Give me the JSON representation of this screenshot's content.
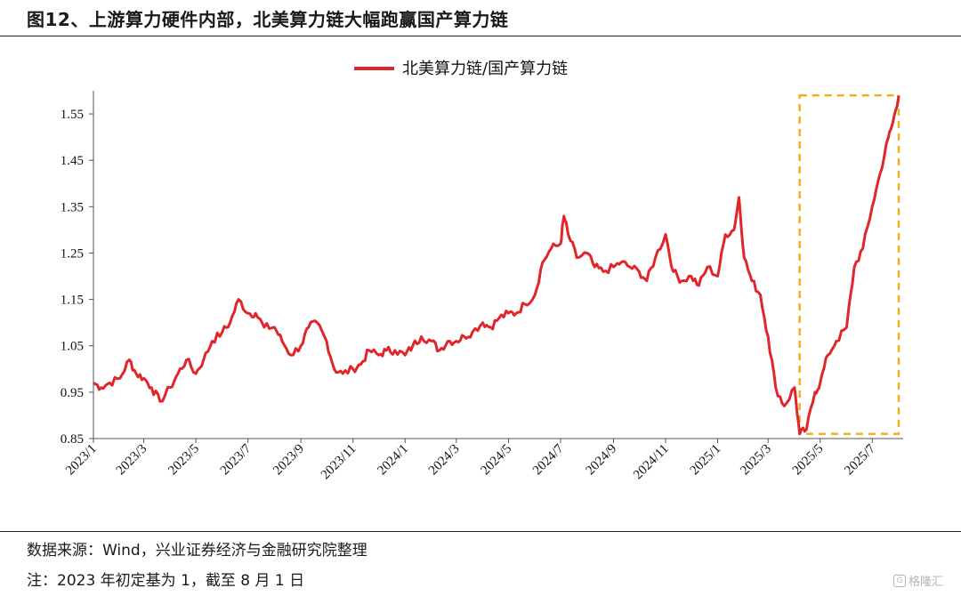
{
  "title": "图12、上游算力硬件内部，北美算力链大幅跑赢国产算力链",
  "source": "数据来源：Wind，兴业证券经济与金融研究院整理",
  "note": "注：2023 年初定基为 1，截至 8 月 1 日",
  "watermark": "格隆汇",
  "colors": {
    "series": "#e0262a",
    "highlight": "#f2b21c",
    "axis": "#555555"
  },
  "chart_data": {
    "type": "line",
    "legend_position": "top-center",
    "grid": false,
    "ylim": [
      0.85,
      1.6
    ],
    "yticks": [
      "0.85",
      "0.95",
      "1.05",
      "1.15",
      "1.25",
      "1.35",
      "1.45",
      "1.55"
    ],
    "xticks": [
      "2023/1",
      "2023/3",
      "2023/5",
      "2023/7",
      "2023/9",
      "2023/11",
      "2024/1",
      "2024/3",
      "2024/5",
      "2024/7",
      "2024/9",
      "2024/11",
      "2025/1",
      "2025/3",
      "2025/5",
      "2025/7"
    ],
    "highlight_box": {
      "x": [
        "2025-04-07",
        "2025-08-01"
      ],
      "y": [
        0.86,
        1.59
      ]
    },
    "series": [
      {
        "name": "北美算力链/国产算力链",
        "x": [
          "2023-01-01",
          "2023-01-10",
          "2023-01-20",
          "2023-02-01",
          "2023-02-12",
          "2023-02-20",
          "2023-03-01",
          "2023-03-10",
          "2023-03-20",
          "2023-04-01",
          "2023-04-10",
          "2023-04-20",
          "2023-05-01",
          "2023-05-10",
          "2023-05-20",
          "2023-06-01",
          "2023-06-10",
          "2023-06-20",
          "2023-07-01",
          "2023-07-10",
          "2023-07-20",
          "2023-08-01",
          "2023-08-10",
          "2023-08-20",
          "2023-09-01",
          "2023-09-10",
          "2023-09-20",
          "2023-10-01",
          "2023-10-10",
          "2023-10-20",
          "2023-11-01",
          "2023-11-10",
          "2023-11-20",
          "2023-12-01",
          "2023-12-10",
          "2023-12-20",
          "2024-01-01",
          "2024-01-10",
          "2024-01-20",
          "2024-02-01",
          "2024-02-10",
          "2024-02-20",
          "2024-03-01",
          "2024-03-10",
          "2024-03-20",
          "2024-04-01",
          "2024-04-10",
          "2024-04-20",
          "2024-05-01",
          "2024-05-10",
          "2024-05-20",
          "2024-06-01",
          "2024-06-10",
          "2024-06-20",
          "2024-07-01",
          "2024-07-05",
          "2024-07-10",
          "2024-07-20",
          "2024-08-01",
          "2024-08-10",
          "2024-08-20",
          "2024-09-01",
          "2024-09-10",
          "2024-09-20",
          "2024-10-01",
          "2024-10-10",
          "2024-10-20",
          "2024-11-01",
          "2024-11-10",
          "2024-11-20",
          "2024-12-01",
          "2024-12-10",
          "2024-12-20",
          "2025-01-01",
          "2025-01-10",
          "2025-01-20",
          "2025-01-26",
          "2025-02-01",
          "2025-02-10",
          "2025-02-20",
          "2025-03-01",
          "2025-03-10",
          "2025-03-20",
          "2025-04-01",
          "2025-04-07",
          "2025-04-15",
          "2025-04-25",
          "2025-05-01",
          "2025-05-10",
          "2025-05-20",
          "2025-06-01",
          "2025-06-10",
          "2025-06-20",
          "2025-07-01",
          "2025-07-10",
          "2025-07-20",
          "2025-07-25",
          "2025-08-01"
        ],
        "y": [
          0.97,
          0.96,
          0.97,
          0.98,
          1.02,
          0.99,
          0.98,
          0.96,
          0.93,
          0.96,
          0.99,
          1.02,
          0.99,
          1.02,
          1.06,
          1.08,
          1.1,
          1.15,
          1.12,
          1.12,
          1.09,
          1.09,
          1.06,
          1.03,
          1.05,
          1.09,
          1.1,
          1.06,
          1.0,
          0.99,
          1.0,
          1.01,
          1.04,
          1.03,
          1.04,
          1.04,
          1.03,
          1.05,
          1.07,
          1.06,
          1.04,
          1.06,
          1.06,
          1.07,
          1.08,
          1.1,
          1.09,
          1.11,
          1.12,
          1.12,
          1.14,
          1.16,
          1.23,
          1.26,
          1.27,
          1.33,
          1.29,
          1.24,
          1.25,
          1.22,
          1.21,
          1.22,
          1.23,
          1.22,
          1.21,
          1.19,
          1.24,
          1.29,
          1.21,
          1.19,
          1.2,
          1.18,
          1.22,
          1.2,
          1.29,
          1.3,
          1.37,
          1.24,
          1.19,
          1.16,
          1.07,
          0.96,
          0.92,
          0.96,
          0.86,
          0.87,
          0.95,
          0.97,
          1.03,
          1.06,
          1.09,
          1.22,
          1.26,
          1.35,
          1.42,
          1.5,
          1.53,
          1.59
        ]
      }
    ]
  }
}
